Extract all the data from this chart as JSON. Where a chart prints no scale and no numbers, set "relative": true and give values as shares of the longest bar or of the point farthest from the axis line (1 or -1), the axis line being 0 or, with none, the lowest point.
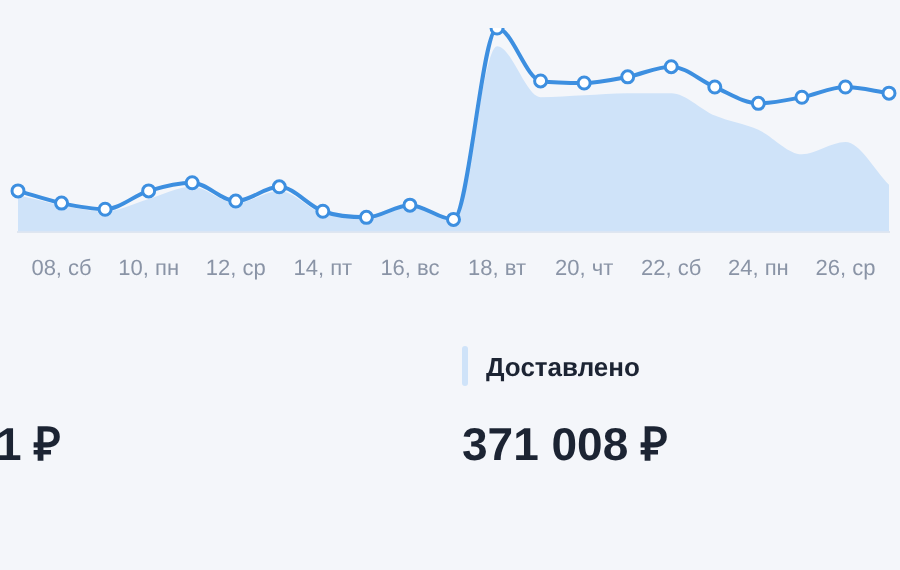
{
  "chart_data": {
    "type": "line",
    "relative": true,
    "legend": "bottom",
    "line_style": "solid",
    "categories": [
      null,
      "08, сб",
      null,
      "10, пн",
      null,
      "12, ср",
      null,
      "14, пт",
      null,
      "16, вс",
      null,
      "18, вт",
      null,
      "20, чт",
      null,
      "22, сб",
      null,
      "24, пн",
      null,
      "26, ср",
      null
    ],
    "series": [
      {
        "color": "#3d8fe0",
        "marker": "circle",
        "values": [
          0.2,
          0.14,
          0.11,
          0.2,
          0.24,
          0.15,
          0.22,
          0.1,
          0.07,
          0.13,
          0.06,
          1,
          0.74,
          0.73,
          0.76,
          0.81,
          0.71,
          0.63,
          0.66,
          0.71,
          0.68
        ]
      },
      {
        "name": "Доставлено",
        "type": "area",
        "color": "#cfe3f9",
        "values": [
          0.18,
          0.13,
          0.1,
          0.16,
          0.22,
          0.14,
          0.2,
          0.09,
          0.07,
          0.12,
          0.06,
          0.91,
          0.66,
          0.67,
          0.68,
          0.68,
          0.57,
          0.5,
          0.38,
          0.44,
          0.23
        ]
      }
    ],
    "annotations": [
      "371 008 ₽",
      "1 ₽"
    ]
  }
}
